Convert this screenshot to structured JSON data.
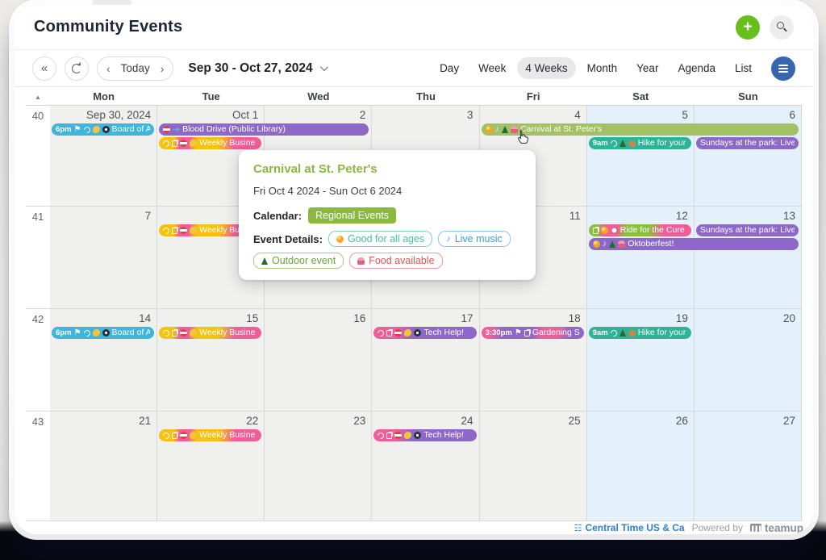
{
  "header": {
    "title": "Community Events"
  },
  "toolbar": {
    "today": "Today",
    "date_range": "Sep 30 - Oct 27, 2024",
    "views": [
      "Day",
      "Week",
      "4 Weeks",
      "Month",
      "Year",
      "Agenda",
      "List"
    ],
    "active_view": "4 Weeks"
  },
  "calendar": {
    "day_headers": [
      "Mon",
      "Tue",
      "Wed",
      "Thu",
      "Fri",
      "Sat",
      "Sun"
    ],
    "weeks": [
      {
        "num": "40",
        "dates": [
          "Sep 30, 2024",
          "Oct 1",
          "2",
          "3",
          "4",
          "5",
          "6"
        ],
        "events": [
          {
            "time": "6pm",
            "title": "Board of A",
            "icons": [
              "flag",
              "repeat",
              "hand",
              "watch"
            ],
            "day": 0,
            "span": 1,
            "line": 0,
            "color": "teal"
          },
          {
            "title": "Blood Drive (Public Library)",
            "icons": [
              "noentry",
              "syringe"
            ],
            "day": 1,
            "span": 2,
            "line": 0,
            "color": "purple"
          },
          {
            "title": "Weekly Busine",
            "icons": [
              "repeat",
              "copy",
              "noentry",
              "hand"
            ],
            "day": 1,
            "span": 1,
            "line": 1,
            "color": "yellowpink"
          },
          {
            "title": "Carnival at St. Peter's",
            "icons": [
              "smiley",
              "music",
              "tree",
              "cupcake"
            ],
            "day": 4,
            "span": 3,
            "line": 0,
            "color": "green"
          },
          {
            "time": "9am",
            "title": "Hike for your",
            "icons": [
              "repeat",
              "tree",
              "deer"
            ],
            "day": 5,
            "span": 1,
            "line": 1,
            "color": "tealgreen"
          },
          {
            "title": "Sundays at the park: Live",
            "icons": [],
            "day": 6,
            "span": 1,
            "line": 1,
            "color": "purple"
          }
        ]
      },
      {
        "num": "41",
        "dates": [
          "7",
          "8",
          "9",
          "10",
          "11",
          "12",
          "13"
        ],
        "events": [
          {
            "title": "Weekly Busine",
            "icons": [
              "repeat",
              "copy",
              "noentry",
              "hand"
            ],
            "day": 1,
            "span": 1,
            "line": 0,
            "color": "yellowpink"
          },
          {
            "title": "Ride for the Cure",
            "icons": [
              "copy",
              "smiley",
              "bike"
            ],
            "day": 5,
            "span": 1,
            "line": 0,
            "color": "greenpink"
          },
          {
            "title": "Sundays at the park: Live",
            "icons": [],
            "day": 6,
            "span": 1,
            "line": 0,
            "color": "purple"
          },
          {
            "title": "Oktoberfest!",
            "icons": [
              "smiley",
              "music",
              "tree",
              "cupcake"
            ],
            "day": 5,
            "span": 2,
            "line": 1,
            "color": "purple"
          }
        ]
      },
      {
        "num": "42",
        "dates": [
          "14",
          "15",
          "16",
          "17",
          "18",
          "19",
          "20"
        ],
        "events": [
          {
            "time": "6pm",
            "title": "Board of A",
            "icons": [
              "flag",
              "repeat",
              "hand",
              "watch"
            ],
            "day": 0,
            "span": 1,
            "line": 0,
            "color": "teal"
          },
          {
            "title": "Weekly Busine",
            "icons": [
              "repeat",
              "copy",
              "noentry",
              "hand"
            ],
            "day": 1,
            "span": 1,
            "line": 0,
            "color": "yellowpink"
          },
          {
            "title": "Tech Help!",
            "icons": [
              "repeat",
              "copy",
              "noentry",
              "hand",
              "watch"
            ],
            "day": 3,
            "span": 1,
            "line": 0,
            "color": "pinkpurple"
          },
          {
            "time": "3:30pm",
            "title": "Gardening Se",
            "icons": [
              "flag",
              "copy"
            ],
            "day": 4,
            "span": 1,
            "line": 0,
            "color": "purplepink"
          },
          {
            "time": "9am",
            "title": "Hike for your",
            "icons": [
              "repeat",
              "tree",
              "deer"
            ],
            "day": 5,
            "span": 1,
            "line": 0,
            "color": "tealgreen"
          }
        ]
      },
      {
        "num": "43",
        "dates": [
          "21",
          "22",
          "23",
          "24",
          "25",
          "26",
          "27"
        ],
        "events": [
          {
            "title": "Weekly Busine",
            "icons": [
              "repeat",
              "copy",
              "noentry",
              "hand"
            ],
            "day": 1,
            "span": 1,
            "line": 0,
            "color": "yellowpink"
          },
          {
            "title": "Tech Help!",
            "icons": [
              "repeat",
              "copy",
              "noentry",
              "hand",
              "watch"
            ],
            "day": 3,
            "span": 1,
            "line": 0,
            "color": "pinkpurple"
          }
        ]
      }
    ]
  },
  "popup": {
    "title": "Carnival at St. Peter's",
    "date_range": "Fri Oct 4 2024 - Sun Oct 6 2024",
    "calendar_label": "Calendar:",
    "calendar_badge": "Regional Events",
    "details_label": "Event Details:",
    "badges": [
      {
        "label": "Good for all ages",
        "icon": "smiley",
        "color": "teal"
      },
      {
        "label": "Live music",
        "icon": "music",
        "color": "blue"
      },
      {
        "label": "Outdoor event",
        "icon": "tree",
        "color": "green"
      },
      {
        "label": "Food available",
        "icon": "cupcake",
        "color": "red"
      }
    ]
  },
  "footer": {
    "timezone": "Central Time US & Ca",
    "powered_by": "Powered by",
    "brand": "teamup"
  },
  "colors": {
    "accent_green": "#67bf1b",
    "menu_blue": "#3566af",
    "event_teal": "#3eb5da",
    "event_purple": "#8d68c8",
    "event_green": "#a2c064",
    "event_tealgreen": "#2eb394",
    "event_yellow": "#f4c211",
    "event_pink": "#ee5f9a",
    "badge_green": "#8bb83f",
    "weekend_bg": "#e4f1fb",
    "weekday_bg": "#f0f0ee"
  }
}
